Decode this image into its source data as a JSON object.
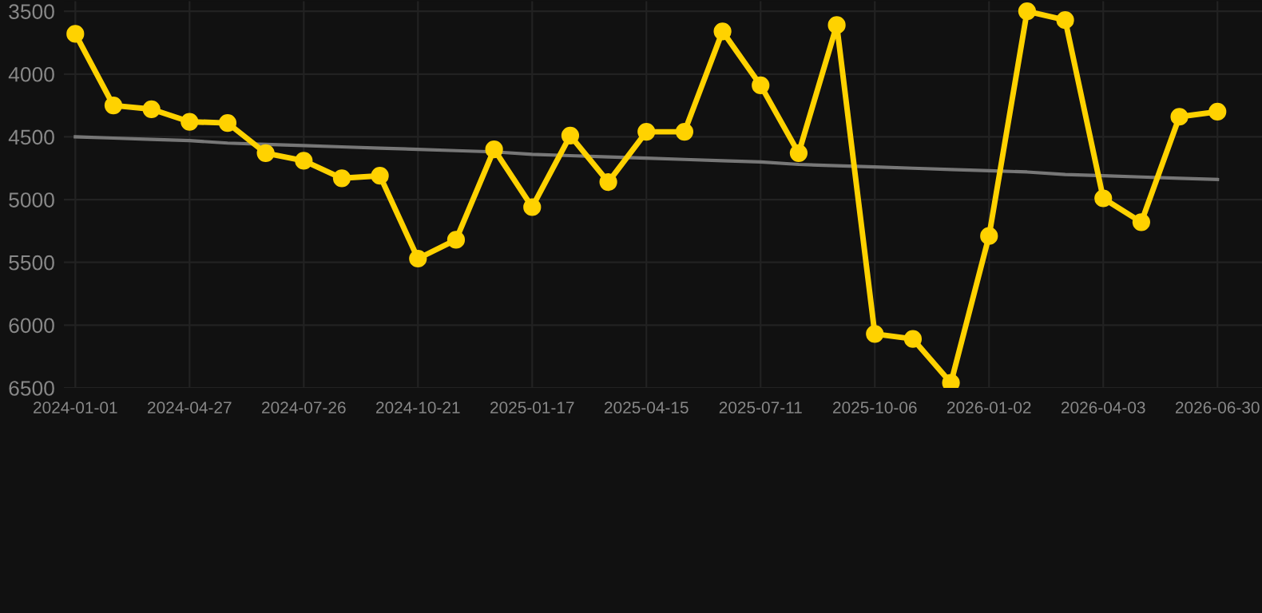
{
  "chart_data": {
    "type": "line",
    "categories": [
      "2024-01-01",
      null,
      null,
      "2024-04-27",
      null,
      null,
      "2024-07-26",
      null,
      null,
      "2024-10-21",
      null,
      null,
      "2025-01-17",
      null,
      null,
      "2025-04-15",
      null,
      null,
      "2025-07-11",
      null,
      null,
      "2025-10-06",
      null,
      null,
      "2026-01-02",
      null,
      null,
      "2026-04-03",
      null,
      null,
      "2026-06-30"
    ],
    "series": [
      {
        "color": "#ffd200",
        "marker": "circle",
        "values": [
          3680,
          4250,
          4280,
          4380,
          4390,
          4630,
          4690,
          4830,
          4810,
          5470,
          5320,
          4600,
          5060,
          4490,
          4860,
          4460,
          4460,
          3660,
          4090,
          4630,
          3610,
          6070,
          6110,
          6460,
          5290,
          3500,
          3570,
          4990,
          5180,
          4340,
          4300
        ]
      },
      {
        "color": "#777777",
        "marker": "none",
        "values": [
          4500,
          4510,
          4520,
          4530,
          4550,
          4560,
          4570,
          4580,
          4590,
          4600,
          4610,
          4620,
          4640,
          4650,
          4660,
          4670,
          4680,
          4690,
          4700,
          4720,
          4730,
          4740,
          4750,
          4760,
          4770,
          4780,
          4800,
          4810,
          4820,
          4830,
          4840
        ]
      }
    ],
    "ylim": [
      6500,
      3420
    ],
    "yticks": [
      3500,
      4000,
      4500,
      5000,
      5500,
      6000,
      6500
    ],
    "grid": true
  }
}
